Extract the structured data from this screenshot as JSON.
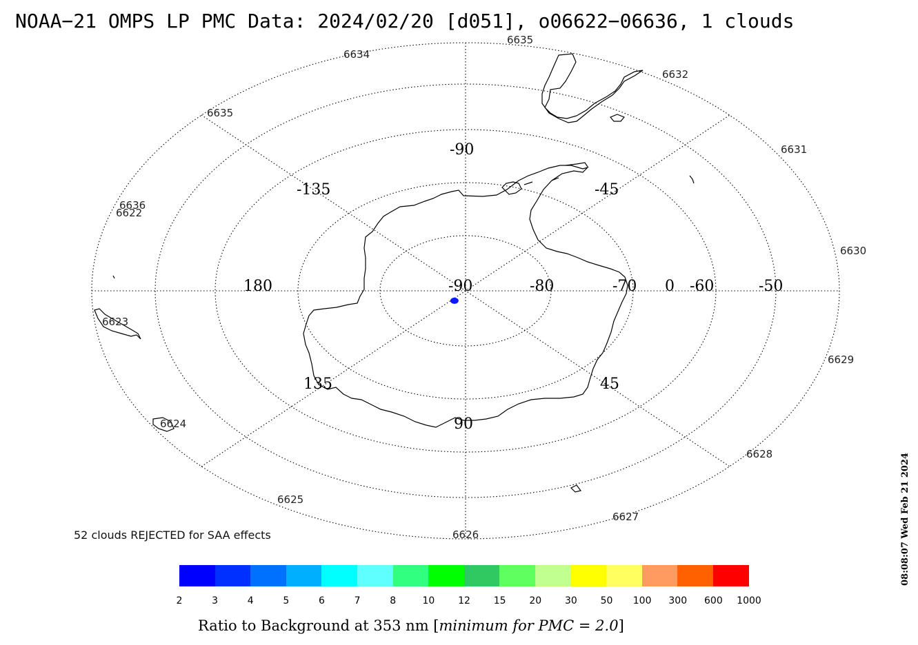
{
  "title": "NOAA−21 OMPS LP PMC Data: 2024/02/20 [d051], o06622−06636, 1 clouds",
  "map": {
    "longitude_labels": [
      "-90",
      "-135",
      "-45",
      "180",
      "0",
      "135",
      "45",
      "90"
    ],
    "latitude_labels": [
      "-90",
      "-80",
      "-70",
      "-60",
      "-50"
    ],
    "orbit_labels": [
      "6634",
      "6635",
      "6632",
      "6635",
      "6631",
      "6636",
      "6622",
      "6630",
      "6623",
      "6629",
      "6624",
      "6628",
      "6625",
      "6627",
      "6626"
    ],
    "cloud_markers": [
      {
        "lat": -86,
        "lon": 100,
        "color": "#0a1aff"
      }
    ]
  },
  "rejected_text": "52 clouds REJECTED for SAA effects",
  "colorbar": {
    "colors": [
      "#0000ff",
      "#0030ff",
      "#0070ff",
      "#00b0ff",
      "#00ffff",
      "#60ffff",
      "#30ff80",
      "#00ff00",
      "#30c860",
      "#60ff60",
      "#c0ff90",
      "#ffff00",
      "#ffff60",
      "#ff9a60",
      "#ff6000",
      "#ff0000"
    ],
    "tick_labels": [
      "2",
      "3",
      "4",
      "5",
      "6",
      "7",
      "8",
      "10",
      "12",
      "15",
      "20",
      "30",
      "50",
      "100",
      "300",
      "600",
      "1000"
    ],
    "axis_label_main": "Ratio to Background at 353 nm [",
    "axis_label_italic": "minimum for PMC = 2.0",
    "axis_label_end": "]"
  },
  "timestamp": "08:08:07 Wed Feb 21 2024"
}
